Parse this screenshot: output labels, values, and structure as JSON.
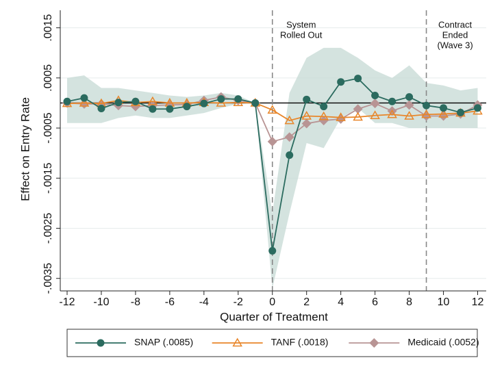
{
  "chart_data": {
    "type": "line",
    "x_label": "Quarter of Treatment",
    "y_label": "Effect on Entry Rate",
    "x": [
      -12,
      -11,
      -10,
      -9,
      -8,
      -7,
      -6,
      -5,
      -4,
      -3,
      -2,
      -1,
      0,
      1,
      2,
      3,
      4,
      5,
      6,
      7,
      8,
      9,
      10,
      11,
      12
    ],
    "xlim": [
      -12.4,
      12.5
    ],
    "xticks": [
      -12,
      -10,
      -8,
      -6,
      -4,
      -2,
      0,
      2,
      4,
      6,
      8,
      10,
      12
    ],
    "ylim": [
      -0.00375,
      0.00185
    ],
    "yticks": [
      {
        "value": 0.0015,
        "label": ".0015"
      },
      {
        "value": 0.0005,
        "label": ".0005"
      },
      {
        "value": -0.0005,
        "label": "-.0005"
      },
      {
        "value": -0.0015,
        "label": "-.0015"
      },
      {
        "value": -0.0025,
        "label": "-.0025"
      },
      {
        "value": -0.0035,
        "label": "-.0035"
      }
    ],
    "grid": true,
    "hline": 0,
    "legend": "bottom",
    "vlines": [
      {
        "x": 0,
        "text": [
          "System",
          "Rolled Out"
        ]
      },
      {
        "x": 9,
        "text": [
          "Contract",
          "Ended",
          "(Wave 3)"
        ]
      }
    ],
    "series": [
      {
        "name": "SNAP (.0085)",
        "color": "#2b6b5f",
        "marker": "circle",
        "band_color": "#c9dcd7",
        "values": [
          3e-05,
          0.0001,
          -0.00011,
          1e-05,
          3e-05,
          -0.00012,
          -0.00012,
          -7e-05,
          -1e-05,
          8e-05,
          8e-05,
          0,
          -0.00295,
          -0.00104,
          7e-05,
          -7e-05,
          0.00042,
          0.00049,
          0.00015,
          3e-05,
          0.00012,
          -5e-05,
          -0.0001,
          -0.00019,
          -0.0001
        ],
        "ci_upper": [
          0.0005,
          0.00055,
          0.0003,
          0.0003,
          0.00025,
          0.0002,
          0.00015,
          0.00012,
          0.00015,
          0.0002,
          0.00015,
          0,
          -0.0022,
          0.0002,
          0.0009,
          0.0011,
          0.0011,
          0.0009,
          0.00065,
          0.0005,
          0.00075,
          0.0004,
          0.00035,
          0.00025,
          0.0003
        ],
        "ci_lower": [
          -0.0004,
          -0.0004,
          -0.0004,
          -0.0003,
          -0.00025,
          -0.0003,
          -0.0003,
          -0.00025,
          -0.0002,
          -0.0001,
          -2e-05,
          0,
          -0.0037,
          -0.0022,
          -0.0008,
          -0.0009,
          -0.0003,
          -0.0001,
          -0.0004,
          -0.0004,
          -0.0005,
          -0.0005,
          -0.0005,
          -0.0005,
          -0.0005
        ]
      },
      {
        "name": "TANF (.0018)",
        "color": "#e8862a",
        "marker": "triangle",
        "values": [
          -1e-05,
          0,
          -1e-05,
          5e-05,
          1e-05,
          3e-05,
          0,
          0,
          1e-05,
          0,
          1e-05,
          0,
          -0.00014,
          -0.00035,
          -0.00026,
          -0.00027,
          -0.00029,
          -0.00028,
          -0.00025,
          -0.00023,
          -0.00026,
          -0.00023,
          -0.00022,
          -0.0002,
          -0.00016
        ]
      },
      {
        "name": "Medicaid (.0052)",
        "color": "#b89494",
        "marker": "diamond",
        "values": [
          0,
          -2e-05,
          -2e-05,
          -5e-05,
          -7e-05,
          -5e-05,
          -4e-05,
          -3e-05,
          5e-05,
          0.00012,
          5e-05,
          0,
          -0.00077,
          -0.00068,
          -0.00041,
          -0.00035,
          -0.00032,
          -0.00012,
          -1e-05,
          -0.00016,
          -4e-05,
          -0.00026,
          -0.00026,
          -0.00022,
          -4e-05
        ]
      }
    ]
  }
}
